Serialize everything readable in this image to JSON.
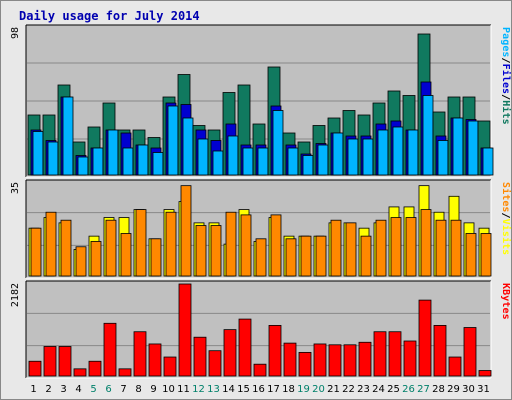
{
  "chart_data": {
    "type": "bar",
    "title": "Daily usage for July 2014",
    "colors": {
      "background": "#c0c0c0",
      "hits": "#10795f",
      "files": "#0000d0",
      "pages": "#00b4ff",
      "visits": "#ffff00",
      "sites": "#ff8800",
      "kbytes": "#ff0000",
      "title": "#0000b0",
      "weekend_day": "#00806a",
      "weekday_day": "#000000",
      "sep_pfh": "#000000",
      "sep_sv": "#000000"
    },
    "days": [
      "1",
      "2",
      "3",
      "4",
      "5",
      "6",
      "7",
      "8",
      "9",
      "10",
      "11",
      "12",
      "13",
      "14",
      "15",
      "16",
      "17",
      "18",
      "19",
      "20",
      "21",
      "22",
      "23",
      "24",
      "25",
      "26",
      "27",
      "28",
      "29",
      "30",
      "31"
    ],
    "weekend_days": [
      "5",
      "6",
      "12",
      "13",
      "19",
      "20",
      "26",
      "27"
    ],
    "panels": [
      {
        "id": "hits_files_pages",
        "max_label": "98",
        "ymax": 98,
        "side_labels": [
          {
            "text": "Pages",
            "color": "#00b4ff"
          },
          {
            "text": "/",
            "color": "#000000"
          },
          {
            "text": "Files",
            "color": "#0000d0"
          },
          {
            "text": "/",
            "color": "#000000"
          },
          {
            "text": "Hits",
            "color": "#10795f"
          }
        ],
        "series": [
          {
            "name": "Hits",
            "color": "#10795f",
            "values": [
              40,
              40,
              60,
              22,
              32,
              48,
              30,
              30,
              25,
              52,
              67,
              33,
              30,
              55,
              60,
              34,
              72,
              28,
              22,
              33,
              38,
              43,
              40,
              48,
              56,
              53,
              94,
              42,
              52,
              52,
              36
            ]
          },
          {
            "name": "Files",
            "color": "#0000d0",
            "values": [
              30,
              23,
              52,
              13,
              18,
              30,
              28,
              20,
              18,
              48,
              47,
              30,
              23,
              34,
              20,
              20,
              46,
              20,
              14,
              21,
              28,
              26,
              26,
              34,
              36,
              30,
              62,
              26,
              38,
              37,
              18
            ]
          },
          {
            "name": "Pages",
            "color": "#00b4ff",
            "values": [
              29,
              22,
              52,
              12,
              18,
              30,
              18,
              20,
              15,
              46,
              38,
              24,
              16,
              26,
              18,
              18,
              43,
              18,
              13,
              20,
              28,
              24,
              24,
              30,
              32,
              30,
              53,
              23,
              38,
              36,
              18
            ]
          }
        ]
      },
      {
        "id": "visits_sites",
        "max_label": "35",
        "ymax": 35,
        "side_labels": [
          {
            "text": "Sites",
            "color": "#ff8800"
          },
          {
            "text": "/",
            "color": "#000000"
          },
          {
            "text": "Visits",
            "color": "#ffff00"
          }
        ],
        "series": [
          {
            "name": "Visits",
            "color": "#ffff00",
            "values": [
              18,
              22,
              20,
              10,
              15,
              22,
              22,
              25,
              14,
              25,
              28,
              20,
              20,
              12,
              25,
              13,
              22,
              15,
              15,
              15,
              20,
              20,
              18,
              20,
              26,
              26,
              34,
              24,
              30,
              20,
              18
            ]
          },
          {
            "name": "Sites",
            "color": "#ff8800",
            "values": [
              18,
              24,
              21,
              11,
              13,
              21,
              16,
              25,
              14,
              24,
              34,
              19,
              19,
              24,
              23,
              14,
              23,
              14,
              15,
              15,
              21,
              20,
              15,
              21,
              22,
              22,
              25,
              21,
              21,
              16,
              16
            ]
          }
        ]
      },
      {
        "id": "kbytes",
        "max_label": "2182",
        "ymax": 2182,
        "side_labels": [
          {
            "text": "KBytes",
            "color": "#ff0000"
          }
        ],
        "series": [
          {
            "name": "KBytes",
            "color": "#ff0000",
            "values": [
              350,
              700,
              700,
              170,
              350,
              1250,
              170,
              1050,
              760,
              450,
              2182,
              920,
              600,
              1100,
              1350,
              280,
              1200,
              780,
              560,
              760,
              740,
              740,
              800,
              1050,
              1050,
              830,
              1800,
              1200,
              450,
              1150,
              130
            ]
          }
        ]
      }
    ]
  }
}
